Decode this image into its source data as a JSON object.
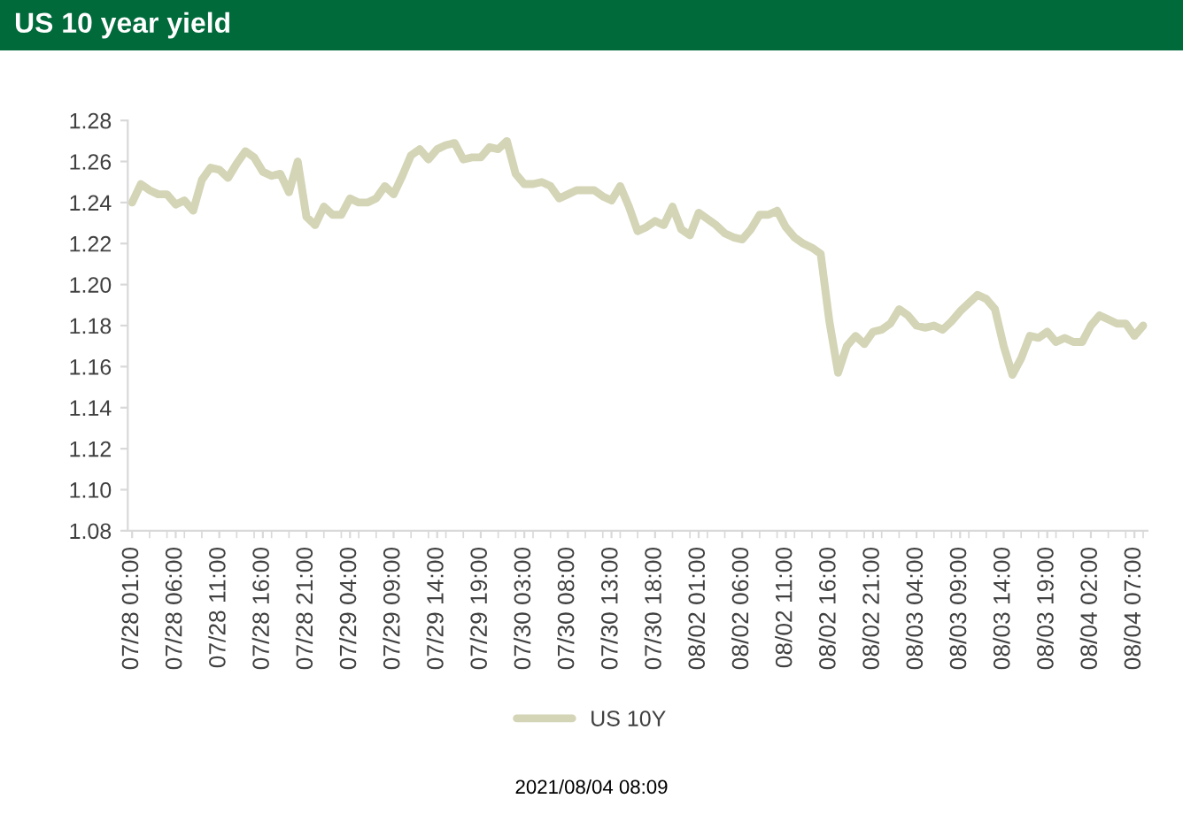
{
  "chart_data": {
    "type": "line",
    "title": "US 10 year yield",
    "categories": [
      "07/28 01:00",
      null,
      null,
      null,
      null,
      "07/28 06:00",
      null,
      null,
      null,
      null,
      "07/28 11:00",
      null,
      null,
      null,
      null,
      "07/28 16:00",
      null,
      null,
      null,
      null,
      "07/28 21:00",
      null,
      null,
      null,
      null,
      "07/29 04:00",
      null,
      null,
      null,
      null,
      "07/29 09:00",
      null,
      null,
      null,
      null,
      "07/29 14:00",
      null,
      null,
      null,
      null,
      "07/29 19:00",
      null,
      null,
      null,
      null,
      "07/30 03:00",
      null,
      null,
      null,
      null,
      "07/30 08:00",
      null,
      null,
      null,
      null,
      "07/30 13:00",
      null,
      null,
      null,
      null,
      "07/30 18:00",
      null,
      null,
      null,
      null,
      "08/02 01:00",
      null,
      null,
      null,
      null,
      "08/02 06:00",
      null,
      null,
      null,
      null,
      "08/02 11:00",
      null,
      null,
      null,
      null,
      "08/02 16:00",
      null,
      null,
      null,
      null,
      "08/02 21:00",
      null,
      null,
      null,
      null,
      "08/03 04:00",
      null,
      null,
      null,
      null,
      "08/03 09:00",
      null,
      null,
      null,
      null,
      "08/03 14:00",
      null,
      null,
      null,
      null,
      "08/03 19:00",
      null,
      null,
      null,
      null,
      "08/04 02:00",
      null,
      null,
      null,
      null,
      "08/04 07:00",
      null
    ],
    "series": [
      {
        "name": "US 10Y",
        "color": "#d4d4b6",
        "values": [
          1.24,
          1.249,
          1.246,
          1.244,
          1.244,
          1.239,
          1.241,
          1.236,
          1.251,
          1.257,
          1.256,
          1.252,
          1.259,
          1.265,
          1.262,
          1.255,
          1.253,
          1.254,
          1.245,
          1.26,
          1.233,
          1.229,
          1.238,
          1.234,
          1.234,
          1.242,
          1.24,
          1.24,
          1.242,
          1.248,
          1.244,
          1.253,
          1.263,
          1.266,
          1.261,
          1.266,
          1.268,
          1.269,
          1.261,
          1.262,
          1.262,
          1.267,
          1.266,
          1.27,
          1.254,
          1.249,
          1.249,
          1.25,
          1.248,
          1.242,
          1.244,
          1.246,
          1.246,
          1.246,
          1.243,
          1.241,
          1.248,
          1.238,
          1.226,
          1.228,
          1.231,
          1.229,
          1.238,
          1.227,
          1.224,
          1.235,
          1.232,
          1.229,
          1.225,
          1.223,
          1.222,
          1.227,
          1.234,
          1.234,
          1.236,
          1.228,
          1.223,
          1.22,
          1.218,
          1.215,
          1.182,
          1.157,
          1.17,
          1.175,
          1.171,
          1.177,
          1.178,
          1.181,
          1.188,
          1.185,
          1.18,
          1.179,
          1.18,
          1.178,
          1.182,
          1.187,
          1.191,
          1.195,
          1.193,
          1.188,
          1.17,
          1.156,
          1.164,
          1.175,
          1.174,
          1.177,
          1.172,
          1.174,
          1.172,
          1.172,
          1.18,
          1.185,
          1.183,
          1.181,
          1.181,
          1.175,
          1.18
        ]
      }
    ],
    "ylim": [
      1.08,
      1.28
    ],
    "yticks": [
      {
        "value": 1.08,
        "label": "1.08"
      },
      {
        "value": 1.1,
        "label": "1.10"
      },
      {
        "value": 1.12,
        "label": "1.12"
      },
      {
        "value": 1.14,
        "label": "1.14"
      },
      {
        "value": 1.16,
        "label": "1.16"
      },
      {
        "value": 1.18,
        "label": "1.18"
      },
      {
        "value": 1.2,
        "label": "1.20"
      },
      {
        "value": 1.22,
        "label": "1.22"
      },
      {
        "value": 1.24,
        "label": "1.24"
      },
      {
        "value": 1.26,
        "label": "1.26"
      },
      {
        "value": 1.28,
        "label": "1.28"
      }
    ],
    "legend": "bottom",
    "annotations": [
      "2021/08/04 08:09"
    ]
  }
}
